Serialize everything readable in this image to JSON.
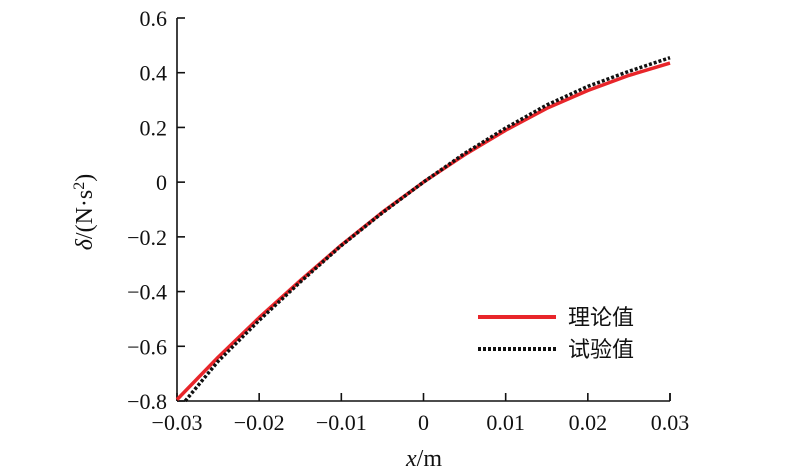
{
  "chart_data": {
    "type": "line",
    "title": "",
    "xlabel_var": "x",
    "xlabel_unit": "/m",
    "ylabel_var": "δ",
    "ylabel_unit": "/(N·s",
    "ylabel_sup": "2",
    "ylabel_close": ")",
    "xlim": [
      -0.03,
      0.03
    ],
    "ylim": [
      -0.8,
      0.6
    ],
    "xticks": [
      -0.03,
      -0.02,
      -0.01,
      0,
      0.01,
      0.02,
      0.03
    ],
    "xtick_labels": [
      "−0.03",
      "−0.02",
      "−0.01",
      "0",
      "0.01",
      "0.02",
      "0.03"
    ],
    "yticks": [
      -0.8,
      -0.6,
      -0.4,
      -0.2,
      0,
      0.2,
      0.4,
      0.6
    ],
    "ytick_labels": [
      "−0.8",
      "−0.6",
      "−0.4",
      "−0.2",
      "0",
      "0.2",
      "0.4",
      "0.6"
    ],
    "grid": false,
    "legend_position": "bottom-right",
    "series": [
      {
        "name": "理论值",
        "style": "solid",
        "color": "#e8252a",
        "x": [
          -0.03,
          -0.025,
          -0.02,
          -0.015,
          -0.01,
          -0.005,
          0,
          0.005,
          0.01,
          0.015,
          0.02,
          0.025,
          0.03
        ],
        "y": [
          -0.795,
          -0.64,
          -0.495,
          -0.36,
          -0.23,
          -0.11,
          0.0,
          0.1,
          0.19,
          0.27,
          0.335,
          0.39,
          0.435
        ]
      },
      {
        "name": "试验值",
        "style": "dotted",
        "color": "#111111",
        "x": [
          -0.029,
          -0.025,
          -0.02,
          -0.015,
          -0.01,
          -0.005,
          0,
          0.005,
          0.01,
          0.015,
          0.02,
          0.025,
          0.03
        ],
        "y": [
          -0.8,
          -0.655,
          -0.505,
          -0.365,
          -0.232,
          -0.112,
          0.0,
          0.105,
          0.198,
          0.282,
          0.35,
          0.405,
          0.455
        ]
      }
    ]
  }
}
